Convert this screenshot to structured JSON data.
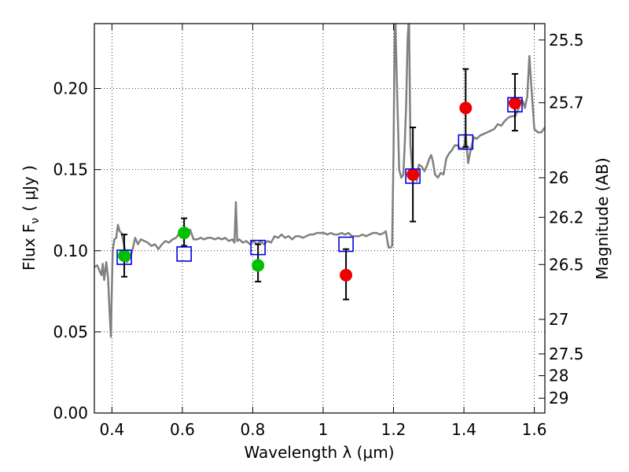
{
  "chart_data": {
    "type": "scatter",
    "xlabel": "Wavelength  λ (μm)",
    "ylabel": "Flux  F",
    "ylabel_sub": "ν",
    "ylabel_unit": "( μJy )",
    "y2label": "Magnitude (AB)",
    "xlim": [
      0.35,
      1.63
    ],
    "ylim": [
      0.0,
      0.24
    ],
    "grid": true,
    "x_ticks": [
      0.4,
      0.6,
      0.8,
      1.0,
      1.2,
      1.4,
      1.6
    ],
    "x_tick_labels": [
      "0.4",
      "0.6",
      "0.8",
      "1",
      "1.2",
      "1.4",
      "1.6"
    ],
    "y_ticks": [
      0.0,
      0.05,
      0.1,
      0.15,
      0.2
    ],
    "y_tick_labels": [
      "0.00",
      "0.05",
      "0.10",
      "0.15",
      "0.20"
    ],
    "y2_ticks": [
      {
        "label": "25.5",
        "flux": 0.2299
      },
      {
        "label": "25.7",
        "flux": 0.1912
      },
      {
        "label": "26",
        "flux": 0.145
      },
      {
        "label": "26.2",
        "flux": 0.1206
      },
      {
        "label": "26.5",
        "flux": 0.0915
      },
      {
        "label": "27",
        "flux": 0.0577
      },
      {
        "label": "27.5",
        "flux": 0.0364
      },
      {
        "label": "28",
        "flux": 0.023
      },
      {
        "label": "29",
        "flux": 0.0091
      }
    ],
    "series": [
      {
        "type": "line",
        "color": "#808080",
        "points": [
          [
            0.35,
            0.09
          ],
          [
            0.358,
            0.091
          ],
          [
            0.364,
            0.088
          ],
          [
            0.37,
            0.085
          ],
          [
            0.374,
            0.092
          ],
          [
            0.378,
            0.082
          ],
          [
            0.384,
            0.093
          ],
          [
            0.389,
            0.083
          ],
          [
            0.393,
            0.064
          ],
          [
            0.397,
            0.047
          ],
          [
            0.402,
            0.1
          ],
          [
            0.407,
            0.107
          ],
          [
            0.412,
            0.108
          ],
          [
            0.417,
            0.116
          ],
          [
            0.422,
            0.112
          ],
          [
            0.427,
            0.111
          ],
          [
            0.434,
            0.104
          ],
          [
            0.442,
            0.093
          ],
          [
            0.45,
            0.095
          ],
          [
            0.458,
            0.1
          ],
          [
            0.466,
            0.108
          ],
          [
            0.474,
            0.104
          ],
          [
            0.482,
            0.107
          ],
          [
            0.492,
            0.106
          ],
          [
            0.502,
            0.105
          ],
          [
            0.512,
            0.103
          ],
          [
            0.522,
            0.104
          ],
          [
            0.532,
            0.101
          ],
          [
            0.542,
            0.104
          ],
          [
            0.552,
            0.106
          ],
          [
            0.562,
            0.105
          ],
          [
            0.572,
            0.107
          ],
          [
            0.582,
            0.108
          ],
          [
            0.592,
            0.111
          ],
          [
            0.602,
            0.112
          ],
          [
            0.612,
            0.108
          ],
          [
            0.622,
            0.113
          ],
          [
            0.632,
            0.107
          ],
          [
            0.642,
            0.107
          ],
          [
            0.652,
            0.108
          ],
          [
            0.662,
            0.107
          ],
          [
            0.672,
            0.108
          ],
          [
            0.682,
            0.108
          ],
          [
            0.692,
            0.107
          ],
          [
            0.702,
            0.108
          ],
          [
            0.712,
            0.107
          ],
          [
            0.722,
            0.108
          ],
          [
            0.732,
            0.106
          ],
          [
            0.742,
            0.107
          ],
          [
            0.748,
            0.105
          ],
          [
            0.752,
            0.13
          ],
          [
            0.756,
            0.106
          ],
          [
            0.762,
            0.107
          ],
          [
            0.772,
            0.105
          ],
          [
            0.782,
            0.106
          ],
          [
            0.792,
            0.104
          ],
          [
            0.802,
            0.106
          ],
          [
            0.812,
            0.104
          ],
          [
            0.822,
            0.106
          ],
          [
            0.832,
            0.104
          ],
          [
            0.842,
            0.106
          ],
          [
            0.852,
            0.105
          ],
          [
            0.862,
            0.109
          ],
          [
            0.872,
            0.108
          ],
          [
            0.882,
            0.11
          ],
          [
            0.892,
            0.108
          ],
          [
            0.902,
            0.109
          ],
          [
            0.912,
            0.107
          ],
          [
            0.922,
            0.109
          ],
          [
            0.932,
            0.109
          ],
          [
            0.942,
            0.108
          ],
          [
            0.952,
            0.109
          ],
          [
            0.962,
            0.11
          ],
          [
            0.972,
            0.11
          ],
          [
            0.982,
            0.111
          ],
          [
            0.992,
            0.111
          ],
          [
            1.002,
            0.111
          ],
          [
            1.012,
            0.11
          ],
          [
            1.022,
            0.111
          ],
          [
            1.032,
            0.11
          ],
          [
            1.042,
            0.11
          ],
          [
            1.052,
            0.111
          ],
          [
            1.062,
            0.11
          ],
          [
            1.072,
            0.111
          ],
          [
            1.082,
            0.109
          ],
          [
            1.092,
            0.109
          ],
          [
            1.102,
            0.109
          ],
          [
            1.112,
            0.11
          ],
          [
            1.122,
            0.109
          ],
          [
            1.132,
            0.11
          ],
          [
            1.142,
            0.111
          ],
          [
            1.152,
            0.111
          ],
          [
            1.162,
            0.11
          ],
          [
            1.172,
            0.111
          ],
          [
            1.178,
            0.112
          ],
          [
            1.182,
            0.107
          ],
          [
            1.186,
            0.102
          ],
          [
            1.192,
            0.102
          ],
          [
            1.196,
            0.103
          ],
          [
            1.2,
            0.16
          ],
          [
            1.203,
            0.23
          ],
          [
            1.205,
            0.245
          ],
          [
            1.21,
            0.2
          ],
          [
            1.216,
            0.15
          ],
          [
            1.222,
            0.145
          ],
          [
            1.228,
            0.147
          ],
          [
            1.232,
            0.166
          ],
          [
            1.236,
            0.19
          ],
          [
            1.24,
            0.23
          ],
          [
            1.244,
            0.245
          ],
          [
            1.248,
            0.165
          ],
          [
            1.254,
            0.147
          ],
          [
            1.26,
            0.148
          ],
          [
            1.266,
            0.143
          ],
          [
            1.272,
            0.153
          ],
          [
            1.28,
            0.152
          ],
          [
            1.288,
            0.149
          ],
          [
            1.296,
            0.153
          ],
          [
            1.302,
            0.157
          ],
          [
            1.307,
            0.159
          ],
          [
            1.312,
            0.155
          ],
          [
            1.318,
            0.147
          ],
          [
            1.326,
            0.145
          ],
          [
            1.334,
            0.148
          ],
          [
            1.342,
            0.147
          ],
          [
            1.35,
            0.157
          ],
          [
            1.358,
            0.16
          ],
          [
            1.366,
            0.162
          ],
          [
            1.374,
            0.165
          ],
          [
            1.382,
            0.165
          ],
          [
            1.39,
            0.163
          ],
          [
            1.4,
            0.163
          ],
          [
            1.405,
            0.172
          ],
          [
            1.412,
            0.154
          ],
          [
            1.42,
            0.163
          ],
          [
            1.428,
            0.17
          ],
          [
            1.436,
            0.169
          ],
          [
            1.446,
            0.171
          ],
          [
            1.456,
            0.172
          ],
          [
            1.466,
            0.173
          ],
          [
            1.476,
            0.174
          ],
          [
            1.486,
            0.175
          ],
          [
            1.496,
            0.178
          ],
          [
            1.506,
            0.177
          ],
          [
            1.516,
            0.18
          ],
          [
            1.526,
            0.182
          ],
          [
            1.536,
            0.183
          ],
          [
            1.546,
            0.183
          ],
          [
            1.556,
            0.188
          ],
          [
            1.563,
            0.193
          ],
          [
            1.568,
            0.192
          ],
          [
            1.573,
            0.188
          ],
          [
            1.58,
            0.195
          ],
          [
            1.586,
            0.22
          ],
          [
            1.592,
            0.2
          ],
          [
            1.6,
            0.175
          ],
          [
            1.61,
            0.173
          ],
          [
            1.62,
            0.173
          ],
          [
            1.63,
            0.176
          ]
        ]
      },
      {
        "type": "error_points",
        "marker": "circle",
        "color": "#00c000",
        "points": [
          {
            "x": 0.435,
            "y": 0.097,
            "lo": 0.084,
            "hi": 0.11
          },
          {
            "x": 0.605,
            "y": 0.111,
            "lo": 0.103,
            "hi": 0.12
          },
          {
            "x": 0.815,
            "y": 0.091,
            "lo": 0.081,
            "hi": 0.104
          }
        ]
      },
      {
        "type": "error_points",
        "marker": "circle",
        "color": "#ee0000",
        "points": [
          {
            "x": 1.065,
            "y": 0.085,
            "lo": 0.07,
            "hi": 0.101
          },
          {
            "x": 1.255,
            "y": 0.147,
            "lo": 0.118,
            "hi": 0.176
          },
          {
            "x": 1.405,
            "y": 0.188,
            "lo": 0.164,
            "hi": 0.212
          },
          {
            "x": 1.545,
            "y": 0.191,
            "lo": 0.174,
            "hi": 0.209
          }
        ]
      },
      {
        "type": "points",
        "marker": "open-square",
        "color": "#0000dd",
        "points": [
          [
            0.435,
            0.096
          ],
          [
            0.605,
            0.098
          ],
          [
            0.815,
            0.102
          ],
          [
            1.065,
            0.104
          ],
          [
            1.255,
            0.146
          ],
          [
            1.405,
            0.167
          ],
          [
            1.545,
            0.19
          ]
        ]
      }
    ]
  }
}
